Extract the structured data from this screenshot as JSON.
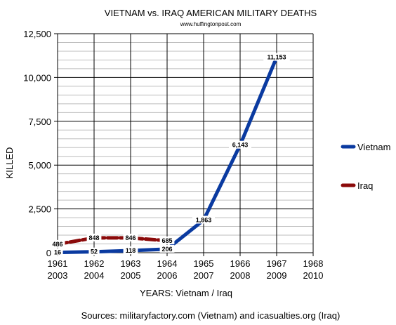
{
  "chart_data": {
    "type": "line",
    "title": "VIETNAM vs. IRAQ AMERICAN MILITARY DEATHS",
    "subtitle": "www.huffingtonpost.com",
    "ylabel": "KILLED",
    "xlabel": "YEARS: Vietnam / Iraq",
    "source": "Sources: militaryfactory.com (Vietnam) and icasualties.org (Iraq)",
    "categories_top": [
      "1961",
      "1962",
      "1963",
      "1964",
      "1965",
      "1966",
      "1967",
      "1968"
    ],
    "categories_bottom": [
      "2003",
      "2004",
      "2005",
      "2006",
      "2007",
      "2008",
      "2009",
      "2010"
    ],
    "ylim": [
      0,
      12500
    ],
    "yticks": [
      {
        "value": 0,
        "label": "0"
      },
      {
        "value": 2500,
        "label": "2,500"
      },
      {
        "value": 5000,
        "label": "5,000"
      },
      {
        "value": 7500,
        "label": "7,500"
      },
      {
        "value": 10000,
        "label": "10,000"
      },
      {
        "value": 12500,
        "label": "12,500"
      }
    ],
    "minor_grid_step": 500,
    "grid": true,
    "legend_position": "right",
    "series": [
      {
        "name": "Vietnam",
        "color": "#0a3aa0",
        "values": [
          16,
          52,
          118,
          206,
          1863,
          6143,
          11153
        ],
        "labels": [
          "16",
          "52",
          "118",
          "206",
          "1,863",
          "6,143",
          "11,153"
        ]
      },
      {
        "name": "Iraq",
        "color": "#8b0a0a",
        "values": [
          486,
          848,
          846,
          685
        ],
        "labels": [
          "486",
          "848",
          "846",
          "685"
        ]
      }
    ]
  }
}
